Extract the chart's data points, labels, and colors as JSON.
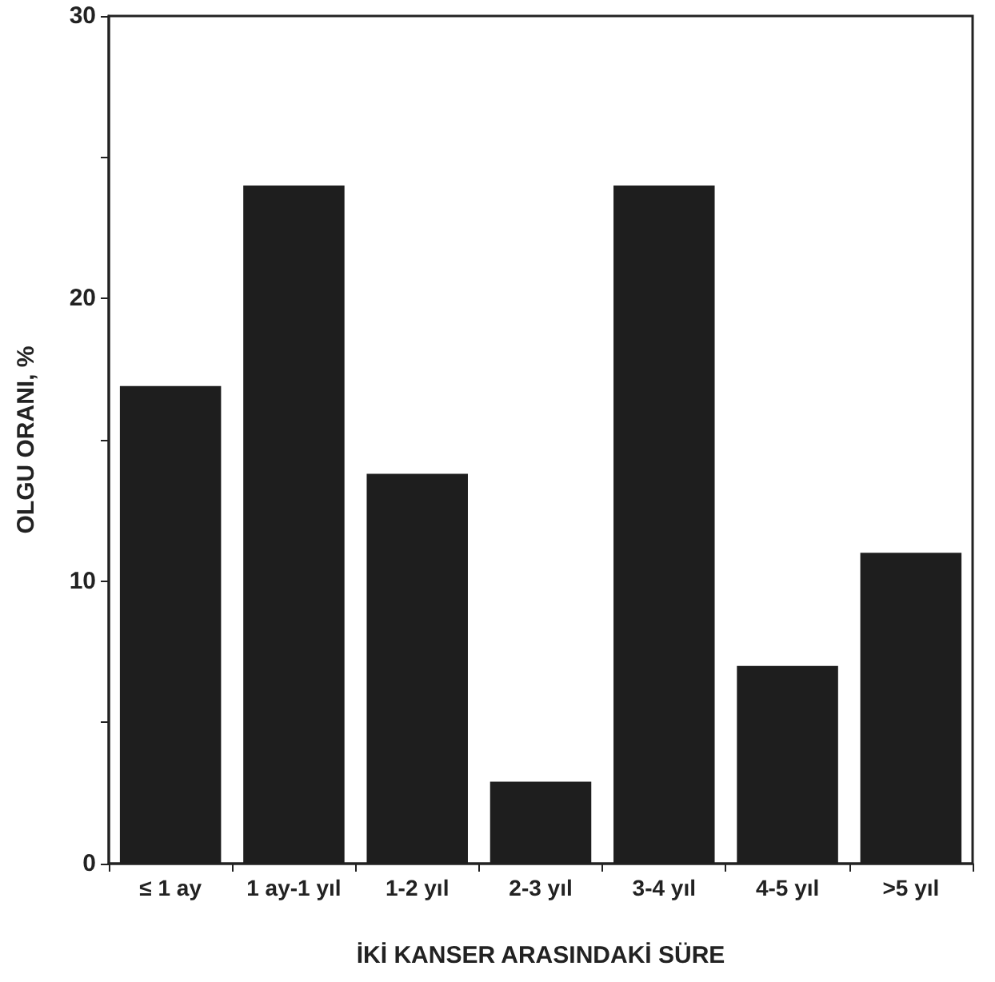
{
  "chart_data": {
    "type": "bar",
    "xlabel": "İKİ KANSER ARASINDAKİ SÜRE",
    "ylabel": "OLGU ORANI, %",
    "categories": [
      "≤ 1 ay",
      "1 ay-1 yıl",
      "1-2 yıl",
      "2-3 yıl",
      "3-4 yıl",
      "4-5 yıl",
      ">5 yıl"
    ],
    "values": [
      16.9,
      24.0,
      13.8,
      2.9,
      24.0,
      7.0,
      11.0
    ],
    "color": "#1e1e1e",
    "ylim": [
      0,
      30
    ],
    "yticks": [
      0,
      {
        "value": 5,
        "label": null
      },
      10,
      {
        "value": 15,
        "label": null
      },
      20,
      {
        "value": 25,
        "label": null
      },
      30
    ],
    "grid": false
  }
}
